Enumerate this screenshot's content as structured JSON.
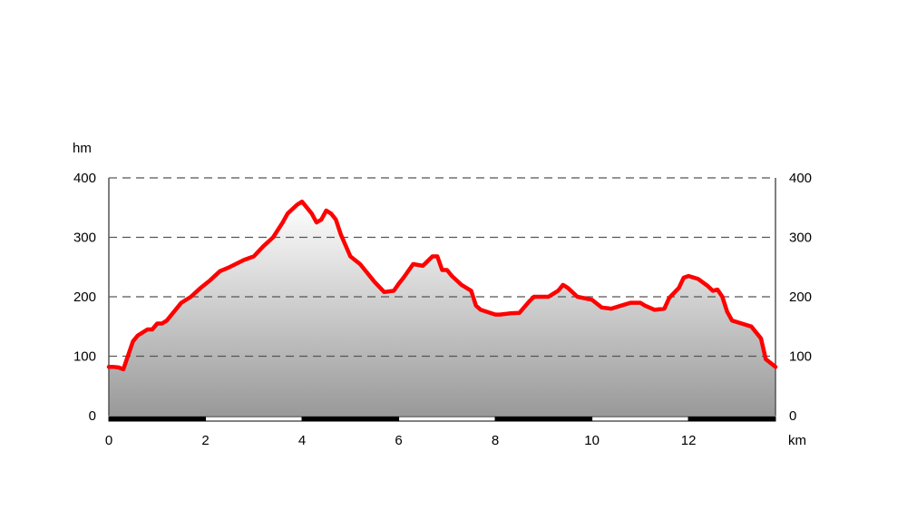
{
  "chart_data": {
    "type": "area",
    "title": "",
    "ylabel": "hm",
    "xlabel": "km",
    "ylim": [
      0,
      400
    ],
    "xlim": [
      0,
      13.8
    ],
    "y_ticks": [
      0,
      100,
      200,
      300,
      400
    ],
    "x_ticks": [
      0,
      2,
      4,
      6,
      8,
      10,
      12
    ],
    "grid": "horizontal-dashed",
    "colors": {
      "line": "#ff0000",
      "fill_top": "#ffffff",
      "fill_bottom": "#999999",
      "grid": "#555555"
    },
    "series": [
      {
        "x": [
          0,
          0.1,
          0.2,
          0.3,
          0.5,
          0.6,
          0.8,
          0.9,
          1.0,
          1.1,
          1.2,
          1.4,
          1.5,
          1.7,
          1.9,
          2.1,
          2.3,
          2.5,
          2.7,
          2.8,
          3.0,
          3.2,
          3.4,
          3.6,
          3.7,
          3.9,
          4.0,
          4.1,
          4.2,
          4.3,
          4.4,
          4.5,
          4.6,
          4.7,
          4.8,
          5.0,
          5.2,
          5.5,
          5.7,
          5.9,
          6.0,
          6.1,
          6.3,
          6.5,
          6.7,
          6.8,
          6.9,
          7.0,
          7.1,
          7.3,
          7.5,
          7.6,
          7.7,
          8.0,
          8.1,
          8.3,
          8.5,
          8.7,
          8.8,
          9.0,
          9.1,
          9.2,
          9.3,
          9.4,
          9.5,
          9.7,
          10.0,
          10.2,
          10.4,
          10.6,
          10.8,
          11.0,
          11.1,
          11.3,
          11.5,
          11.6,
          11.8,
          11.9,
          12.0,
          12.2,
          12.4,
          12.5,
          12.6,
          12.7,
          12.8,
          12.9,
          13.1,
          13.3,
          13.5,
          13.6,
          13.8
        ],
        "values": [
          82,
          82,
          81,
          78,
          125,
          135,
          145,
          145,
          155,
          155,
          160,
          180,
          190,
          200,
          215,
          228,
          243,
          250,
          258,
          262,
          268,
          285,
          300,
          325,
          340,
          355,
          360,
          350,
          340,
          325,
          330,
          345,
          340,
          330,
          305,
          268,
          255,
          225,
          208,
          210,
          222,
          232,
          255,
          252,
          268,
          268,
          245,
          245,
          235,
          220,
          210,
          185,
          178,
          170,
          170,
          172,
          173,
          192,
          200,
          200,
          200,
          205,
          210,
          220,
          215,
          200,
          195,
          182,
          180,
          185,
          190,
          190,
          185,
          178,
          180,
          198,
          215,
          232,
          235,
          230,
          218,
          210,
          212,
          200,
          175,
          160,
          155,
          150,
          130,
          95,
          82
        ]
      }
    ]
  }
}
